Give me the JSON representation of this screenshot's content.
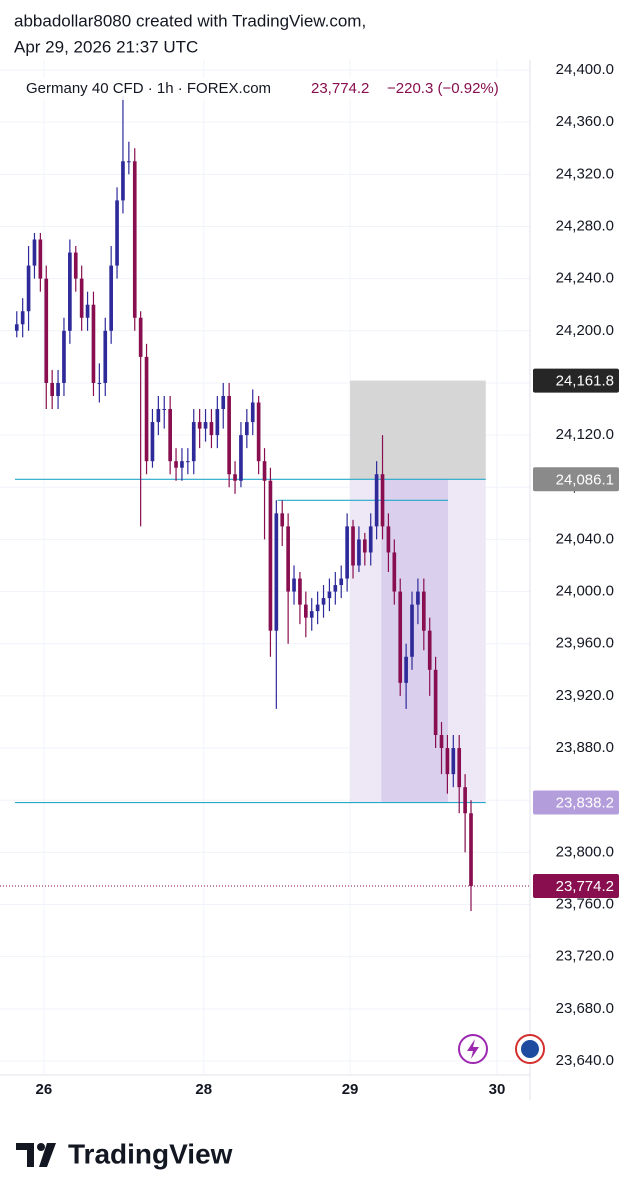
{
  "chart_data": {
    "type": "candlestick",
    "author_line": "abbadollar8080 created with TradingView.com,",
    "date_line": "Apr 29, 2026 21:37 UTC",
    "symbol": "Germany 40 CFD · 1h · FOREX.com",
    "last": "23,774.2",
    "change": "−220.3 (−0.92%)",
    "brand": "TradingView",
    "up_color": "#2e2a9a",
    "down_color": "#880e4f",
    "open": [
      24200,
      24205,
      24215,
      24250,
      24270,
      24240,
      24160,
      24150,
      24160,
      24200,
      24260,
      24240,
      24210,
      24220,
      24160,
      24160,
      24200,
      24250,
      24300,
      24330,
      24330,
      24210,
      24180,
      24100,
      24130,
      24140,
      24140,
      24100,
      24095,
      24100,
      24100,
      24130,
      24125,
      24130,
      24120,
      24140,
      24150,
      24090,
      24085,
      24120,
      24130,
      24145,
      24100,
      24085,
      23970,
      24060,
      24050,
      24000,
      24010,
      23990,
      23980,
      23985,
      23990,
      23995,
      24000,
      24005,
      24010,
      24050,
      24020,
      24040,
      24030,
      24050,
      24090,
      24050,
      24030,
      24000,
      23930,
      23950,
      23990,
      24000,
      23970,
      23940,
      23890,
      23880,
      23860,
      23880,
      23850,
      23830
    ],
    "high": [
      24215,
      24225,
      24265,
      24275,
      24275,
      24250,
      24170,
      24170,
      24210,
      24270,
      24265,
      24250,
      24230,
      24230,
      24175,
      24210,
      24265,
      24310,
      24380,
      24345,
      24340,
      24215,
      24190,
      24140,
      24150,
      24150,
      24150,
      24110,
      24110,
      24110,
      24140,
      24140,
      24140,
      24140,
      24150,
      24160,
      24160,
      24100,
      24130,
      24140,
      24155,
      24150,
      24110,
      24095,
      24070,
      24070,
      24060,
      24020,
      24015,
      24000,
      23995,
      24000,
      24005,
      24010,
      24015,
      24020,
      24060,
      24055,
      24050,
      24045,
      24060,
      24100,
      24120,
      24060,
      24040,
      24010,
      23960,
      24000,
      24010,
      24010,
      23980,
      23950,
      23900,
      23890,
      23890,
      23890,
      23860,
      23840
    ],
    "low": [
      24195,
      24195,
      24200,
      24240,
      24230,
      24140,
      24140,
      24140,
      24150,
      24190,
      24230,
      24200,
      24200,
      24150,
      24145,
      24150,
      24190,
      24240,
      24290,
      24320,
      24200,
      24050,
      24090,
      24095,
      24120,
      24125,
      24090,
      24085,
      24085,
      24090,
      24090,
      24110,
      24115,
      24110,
      24110,
      24125,
      24080,
      24075,
      24080,
      24110,
      24120,
      24090,
      24040,
      23950,
      23910,
      24035,
      23960,
      23990,
      23975,
      23965,
      23970,
      23975,
      23980,
      23985,
      23990,
      23995,
      24000,
      24010,
      24015,
      24020,
      24020,
      24040,
      24040,
      24015,
      23990,
      23920,
      23910,
      23940,
      23975,
      23955,
      23920,
      23880,
      23860,
      23845,
      23850,
      23830,
      23800,
      23755
    ],
    "close": [
      24205,
      24215,
      24250,
      24270,
      24240,
      24160,
      24150,
      24160,
      24200,
      24260,
      24240,
      24210,
      24220,
      24160,
      24160,
      24200,
      24250,
      24300,
      24330,
      24330,
      24210,
      24180,
      24100,
      24130,
      24140,
      24140,
      24100,
      24095,
      24100,
      24100,
      24130,
      24125,
      24130,
      24120,
      24140,
      24150,
      24090,
      24085,
      24120,
      24130,
      24145,
      24100,
      24085,
      23970,
      24060,
      24050,
      24000,
      24010,
      23990,
      23980,
      23985,
      23990,
      23995,
      24000,
      24005,
      24010,
      24050,
      24020,
      24040,
      24030,
      24050,
      24090,
      24050,
      24030,
      24000,
      23930,
      23950,
      23990,
      24000,
      23970,
      23940,
      23890,
      23880,
      23860,
      23880,
      23850,
      23830,
      23774.2
    ],
    "xlim": [
      -0.3,
      87
    ],
    "xticks": [
      {
        "value": 4.6,
        "label": "26"
      },
      {
        "value": 31.7,
        "label": "28"
      },
      {
        "value": 56.5,
        "label": "29"
      },
      {
        "value": 81.4,
        "label": "30"
      }
    ],
    "ylim": [
      23640,
      24400
    ],
    "yticks": [
      {
        "value": 24400,
        "label": "24,400.0"
      },
      {
        "value": 24360,
        "label": "24,360.0"
      },
      {
        "value": 24320,
        "label": "24,320.0"
      },
      {
        "value": 24280,
        "label": "24,280.0"
      },
      {
        "value": 24240,
        "label": "24,240.0"
      },
      {
        "value": 24200,
        "label": "24,200.0"
      },
      {
        "value": 24160,
        "label": "24,160.0"
      },
      {
        "value": 24120,
        "label": "24,120.0"
      },
      {
        "value": 24080,
        "label": "24,080.0"
      },
      {
        "value": 24040,
        "label": "24,040.0"
      },
      {
        "value": 24000,
        "label": "24,000.0"
      },
      {
        "value": 23960,
        "label": "23,960.0"
      },
      {
        "value": 23920,
        "label": "23,920.0"
      },
      {
        "value": 23880,
        "label": "23,880.0"
      },
      {
        "value": 23840,
        "label": "23,840.0"
      },
      {
        "value": 23800,
        "label": "23,800.0"
      },
      {
        "value": 23760,
        "label": "23,760.0"
      },
      {
        "value": 23720,
        "label": "23,720.0"
      },
      {
        "value": 23680,
        "label": "23,680.0"
      },
      {
        "value": 23640,
        "label": "23,640.0"
      }
    ],
    "grid": true,
    "position": {
      "start": 56.5,
      "fill_start": 61.8,
      "fill_end": 73.1,
      "end": 79.5,
      "stop": 24161.8,
      "entry": 24086.1,
      "target": 23838.2
    },
    "hlines": [
      {
        "value": 24086.1,
        "start": -0.3,
        "end": 79.5
      },
      {
        "value": 24070,
        "start": 44.2,
        "end": 73.1
      },
      {
        "value": 23838.2,
        "start": -0.3,
        "end": 79.5
      }
    ],
    "price_tags": [
      {
        "value": 24161.8,
        "label": "24,161.8",
        "color": "#262626"
      },
      {
        "value": 24086.1,
        "label": "24,086.1",
        "color": "#8a8a8a"
      },
      {
        "value": 23838.2,
        "label": "23,838.2",
        "color": "#b39ddb"
      },
      {
        "value": 23774.2,
        "label": "23,774.2",
        "color": "#880e4f"
      }
    ]
  }
}
